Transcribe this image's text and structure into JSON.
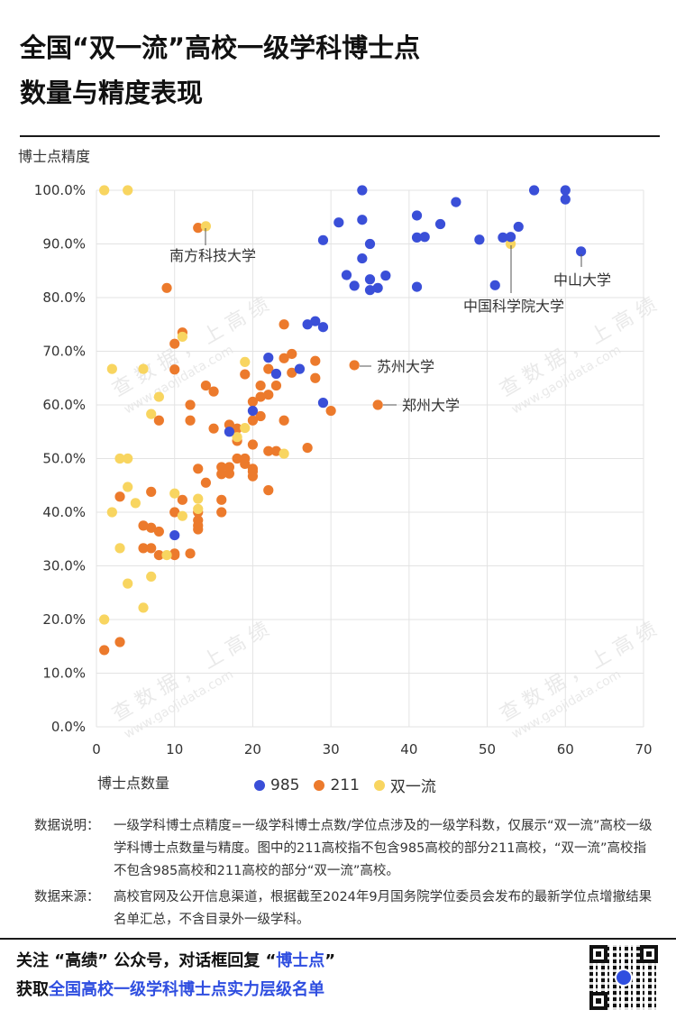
{
  "header": {
    "title_line1": "全国“双一流”高校一级学科博士点",
    "title_line2": "数量与精度表现"
  },
  "watermark": "查 数 据 ， 上 高 绩",
  "watermark_url": "www.gaojidata.com",
  "colors": {
    "s985": "#3a4fd8",
    "s211": "#ec7a2c",
    "sdouble": "#f8d560",
    "grid": "#e3e3e3"
  },
  "chart_data": {
    "type": "scatter",
    "xlabel": "博士点数量",
    "ylabel": "博士点精度",
    "xlim": [
      0,
      70
    ],
    "ylim": [
      0,
      100
    ],
    "xticks": [
      0,
      10,
      20,
      30,
      40,
      50,
      60,
      70
    ],
    "yticks": [
      0,
      10,
      20,
      30,
      40,
      50,
      60,
      70,
      80,
      90,
      100
    ],
    "ytick_labels": [
      "0.0%",
      "10.0%",
      "20.0%",
      "30.0%",
      "40.0%",
      "50.0%",
      "60.0%",
      "70.0%",
      "80.0%",
      "90.0%",
      "100.0%"
    ],
    "legend_position": "bottom",
    "series": [
      {
        "name": "985",
        "points": [
          [
            34,
            100
          ],
          [
            56,
            100
          ],
          [
            60,
            100
          ],
          [
            60,
            98.3
          ],
          [
            46,
            97.8
          ],
          [
            41,
            95.3
          ],
          [
            34,
            94.5
          ],
          [
            31,
            94
          ],
          [
            44,
            93.7
          ],
          [
            54,
            93.2
          ],
          [
            41,
            91.2
          ],
          [
            42,
            91.3
          ],
          [
            52,
            91.2
          ],
          [
            53,
            91.3
          ],
          [
            49,
            90.8
          ],
          [
            29,
            90.7
          ],
          [
            35,
            90
          ],
          [
            62,
            88.6
          ],
          [
            34,
            87.3
          ],
          [
            32,
            84.2
          ],
          [
            37,
            84.1
          ],
          [
            35,
            83.4
          ],
          [
            33,
            82.2
          ],
          [
            36,
            81.8
          ],
          [
            35,
            81.4
          ],
          [
            51,
            82.3
          ],
          [
            41,
            82
          ],
          [
            28,
            75.6
          ],
          [
            27,
            75
          ],
          [
            29,
            74.5
          ],
          [
            22,
            68.8
          ],
          [
            26,
            66.7
          ],
          [
            23,
            65.8
          ],
          [
            20,
            58.9
          ],
          [
            29,
            60.4
          ],
          [
            17,
            55
          ],
          [
            10,
            35.7
          ]
        ]
      },
      {
        "name": "211",
        "points": [
          [
            13,
            93
          ],
          [
            9,
            81.8
          ],
          [
            11,
            73.5
          ],
          [
            10,
            71.4
          ],
          [
            24,
            75
          ],
          [
            25,
            69.5
          ],
          [
            24,
            68.7
          ],
          [
            28,
            68.2
          ],
          [
            22,
            66.7
          ],
          [
            33,
            67.4
          ],
          [
            10,
            66.6
          ],
          [
            25,
            66
          ],
          [
            19,
            65.7
          ],
          [
            21,
            63.6
          ],
          [
            14,
            63.6
          ],
          [
            23,
            63.6
          ],
          [
            15,
            62.5
          ],
          [
            22,
            61.9
          ],
          [
            28,
            65
          ],
          [
            21,
            61.5
          ],
          [
            20,
            60.6
          ],
          [
            12,
            60
          ],
          [
            36,
            60
          ],
          [
            30,
            58.9
          ],
          [
            21,
            57.9
          ],
          [
            20,
            57.1
          ],
          [
            24,
            57.1
          ],
          [
            8,
            57.1
          ],
          [
            12,
            57.1
          ],
          [
            17,
            56.3
          ],
          [
            15,
            55.6
          ],
          [
            18,
            55.6
          ],
          [
            18,
            53.3
          ],
          [
            20,
            52.6
          ],
          [
            27,
            52
          ],
          [
            22,
            51.4
          ],
          [
            23,
            51.4
          ],
          [
            18,
            50
          ],
          [
            19,
            50
          ],
          [
            19,
            49
          ],
          [
            20,
            48.1
          ],
          [
            16,
            48.4
          ],
          [
            17,
            48.4
          ],
          [
            13,
            48.1
          ],
          [
            20,
            47.6
          ],
          [
            17,
            47.2
          ],
          [
            16,
            47.1
          ],
          [
            20,
            46.7
          ],
          [
            14,
            45.5
          ],
          [
            22,
            44.1
          ],
          [
            7,
            43.8
          ],
          [
            3,
            42.9
          ],
          [
            11,
            42.3
          ],
          [
            16,
            42.3
          ],
          [
            10,
            40
          ],
          [
            13,
            40
          ],
          [
            16,
            40
          ],
          [
            13,
            38.5
          ],
          [
            13,
            37.5
          ],
          [
            6,
            37.5
          ],
          [
            7,
            37.1
          ],
          [
            13,
            36.8
          ],
          [
            8,
            36.4
          ],
          [
            6,
            33.3
          ],
          [
            7,
            33.3
          ],
          [
            10,
            32
          ],
          [
            8,
            32
          ],
          [
            10,
            32.3
          ],
          [
            12,
            32.3
          ],
          [
            1,
            14.3
          ],
          [
            3,
            15.8
          ]
        ]
      },
      {
        "name": "双一流",
        "points": [
          [
            1,
            100
          ],
          [
            4,
            100
          ],
          [
            14,
            93.3
          ],
          [
            53,
            90
          ],
          [
            11,
            72.7
          ],
          [
            19,
            68
          ],
          [
            2,
            66.7
          ],
          [
            6,
            66.7
          ],
          [
            8,
            61.5
          ],
          [
            7,
            58.3
          ],
          [
            19,
            55.7
          ],
          [
            18,
            54
          ],
          [
            24,
            50.9
          ],
          [
            3,
            50
          ],
          [
            4,
            50
          ],
          [
            4,
            44.7
          ],
          [
            10,
            43.5
          ],
          [
            5,
            41.7
          ],
          [
            2,
            40
          ],
          [
            13,
            42.5
          ],
          [
            13,
            40.6
          ],
          [
            11,
            39.3
          ],
          [
            9,
            32
          ],
          [
            3,
            33.3
          ],
          [
            4,
            26.7
          ],
          [
            7,
            28
          ],
          [
            6,
            22.2
          ],
          [
            1,
            20
          ]
        ]
      }
    ],
    "annotations": [
      {
        "text": "南方科技大学"
      },
      {
        "text": "中山大学"
      },
      {
        "text": "中国科学院大学"
      },
      {
        "text": "苏州大学"
      },
      {
        "text": "郑州大学"
      }
    ]
  },
  "legend": [
    {
      "label": "985"
    },
    {
      "label": "211"
    },
    {
      "label": "双一流"
    }
  ],
  "notes": {
    "desc_label": "数据说明：",
    "desc_text": "一级学科博士点精度=一级学科博士点数/学位点涉及的一级学科数，仅展示“双一流”高校一级学科博士点数量与精度。图中的211高校指不包含985高校的部分211高校，“双一流”高校指不包含985高校和211高校的部分“双一流”高校。",
    "source_label": "数据来源：",
    "source_text": "高校官网及公开信息渠道，根据截至2024年9月国务院学位委员会发布的最新学位点增撤结果名单汇总，不含目录外一级学科。"
  },
  "footer": {
    "line1_a": "关注 “高绩” 公众号，对话框回复 “",
    "line1_b": "博士点",
    "line1_c": "”",
    "line2_a": "获取",
    "line2_b": "全国高校一级学科博士点实力层级名单"
  }
}
